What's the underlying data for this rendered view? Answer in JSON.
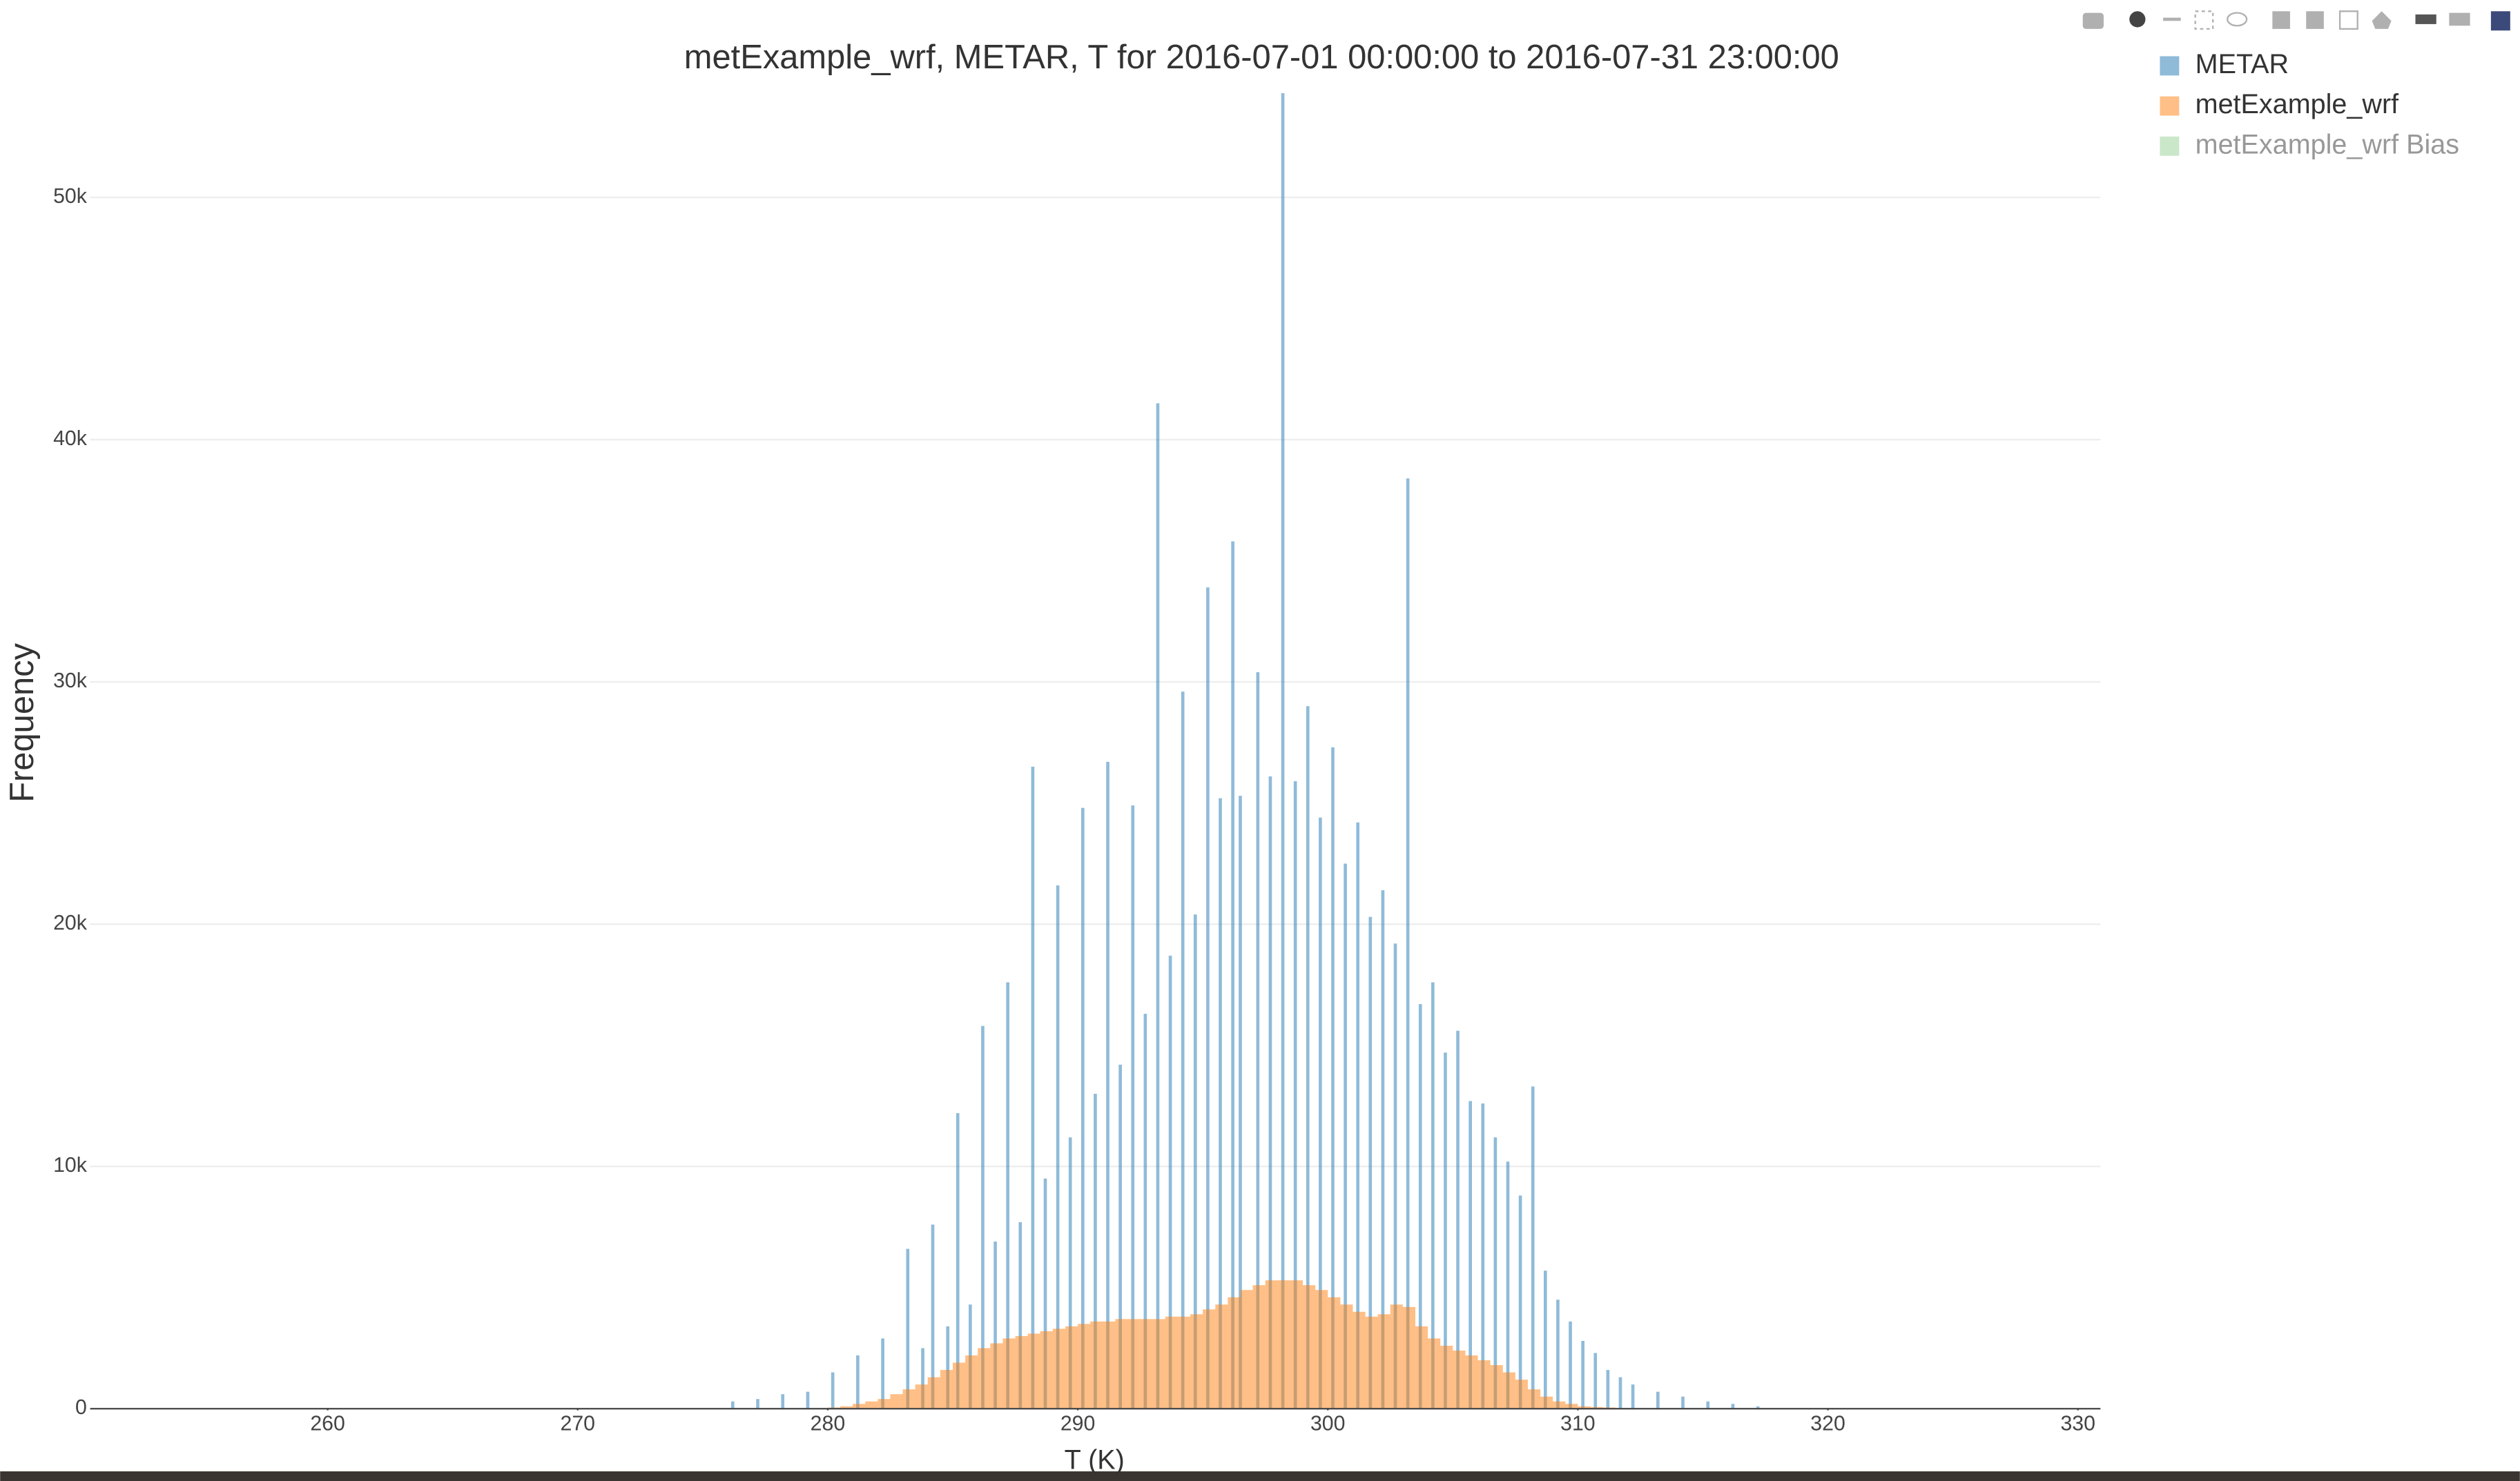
{
  "chart_data": {
    "type": "histogram",
    "title": "metExample_wrf, METAR, T for 2016-07-01 00:00:00 to 2016-07-31 23:00:00",
    "x_label": "T (K)",
    "y_label": "Frequency",
    "xlim": [
      250.5,
      330.9
    ],
    "xticks": [
      260,
      270,
      280,
      290,
      300,
      310,
      320,
      330
    ],
    "ylim": [
      0,
      54500
    ],
    "yticks": [
      0,
      {
        "value": 10000,
        "label": "10k"
      },
      {
        "value": 20000,
        "label": "20k"
      },
      {
        "value": 30000,
        "label": "30k"
      },
      {
        "value": 40000,
        "label": "40k"
      },
      {
        "value": 50000,
        "label": "50k"
      }
    ],
    "grid": true,
    "opacity": 0.5,
    "legend": "top-right",
    "series": [
      {
        "name": "METAR",
        "color": "#1f77b4",
        "x": [
          276.2,
          277.2,
          278.2,
          279.2,
          280.2,
          281.2,
          282.2,
          283.2,
          283.8,
          284.2,
          284.8,
          285.2,
          285.7,
          286.2,
          286.7,
          287.2,
          287.7,
          288.2,
          288.7,
          289.2,
          289.7,
          290.2,
          290.7,
          291.2,
          291.7,
          292.2,
          292.7,
          293.2,
          293.7,
          294.2,
          294.7,
          295.2,
          295.7,
          296.2,
          296.5,
          297.2,
          297.7,
          298.2,
          298.7,
          299.2,
          299.7,
          300.2,
          300.7,
          301.2,
          301.7,
          302.2,
          302.7,
          303.2,
          303.7,
          304.2,
          304.7,
          305.2,
          305.7,
          306.2,
          306.7,
          307.2,
          307.7,
          308.2,
          308.7,
          309.2,
          309.7,
          310.2,
          310.7,
          311.2,
          311.7,
          312.2,
          313.2,
          314.2,
          315.2,
          316.2,
          317.2
        ],
        "values": [
          300,
          400,
          600,
          700,
          1500,
          2200,
          2900,
          6600,
          2500,
          7600,
          3400,
          12200,
          4300,
          15800,
          6900,
          17600,
          7700,
          26500,
          9500,
          21600,
          11200,
          24800,
          13000,
          26700,
          14200,
          24900,
          16300,
          41500,
          18700,
          29600,
          20400,
          33900,
          25200,
          35800,
          25300,
          30400,
          26100,
          54300,
          25900,
          29000,
          24400,
          27300,
          22500,
          24200,
          20300,
          21400,
          19200,
          38400,
          16700,
          17600,
          14700,
          15600,
          12700,
          12600,
          11200,
          10200,
          8800,
          13300,
          5700,
          4500,
          3600,
          2800,
          2300,
          1600,
          1300,
          1000,
          700,
          500,
          300,
          200,
          100
        ]
      },
      {
        "name": "metExample_wrf",
        "color": "#ff7f0e",
        "bins": [
          280,
          280.5,
          281,
          281.5,
          282,
          282.5,
          283,
          283.5,
          284,
          284.5,
          285,
          285.5,
          286,
          286.5,
          287,
          287.5,
          288,
          288.5,
          289,
          289.5,
          290,
          290.5,
          291,
          291.5,
          292,
          292.5,
          293,
          293.5,
          294,
          294.5,
          295,
          295.5,
          296,
          296.5,
          297,
          297.5,
          298,
          298.5,
          299,
          299.5,
          300,
          300.5,
          301,
          301.5,
          302,
          302.5,
          303,
          303.5,
          304,
          304.5,
          305,
          305.5,
          306,
          306.5,
          307,
          307.5,
          308,
          308.5,
          309,
          309.5,
          310,
          310.5,
          311,
          311.5,
          312
        ],
        "values": [
          50,
          100,
          200,
          300,
          400,
          600,
          800,
          1000,
          1300,
          1600,
          1900,
          2200,
          2500,
          2700,
          2900,
          3000,
          3100,
          3200,
          3300,
          3400,
          3500,
          3600,
          3600,
          3700,
          3700,
          3700,
          3700,
          3800,
          3800,
          3900,
          4100,
          4300,
          4600,
          4900,
          5100,
          5300,
          5300,
          5300,
          5100,
          4900,
          4600,
          4300,
          4000,
          3800,
          3900,
          4300,
          4200,
          3400,
          2900,
          2600,
          2400,
          2200,
          2000,
          1800,
          1500,
          1200,
          800,
          500,
          300,
          200,
          100,
          70,
          50,
          30
        ]
      },
      {
        "name": "metExample_wrf Bias",
        "color": "#2ca02c",
        "visible": "legendonly",
        "values": []
      }
    ]
  }
}
